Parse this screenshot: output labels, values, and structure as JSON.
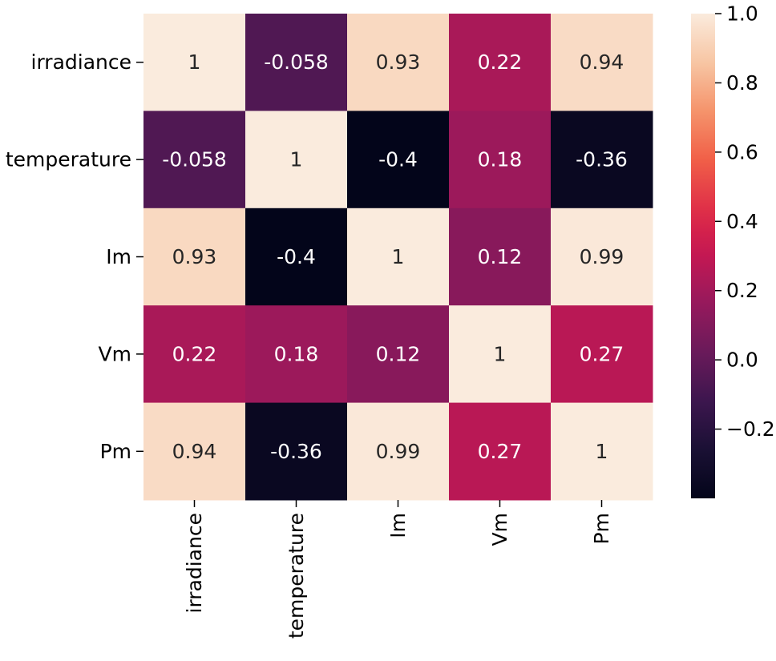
{
  "chart_data": {
    "type": "heatmap",
    "title": "",
    "xlabel": "",
    "ylabel": "",
    "row_labels": [
      "irradiance",
      "temperature",
      "Im",
      "Vm",
      "Pm"
    ],
    "col_labels": [
      "irradiance",
      "temperature",
      "Im",
      "Vm",
      "Pm"
    ],
    "values": [
      [
        1,
        -0.058,
        0.93,
        0.22,
        0.94
      ],
      [
        -0.058,
        1,
        -0.4,
        0.18,
        -0.36
      ],
      [
        0.93,
        -0.4,
        1,
        0.12,
        0.99
      ],
      [
        0.22,
        0.18,
        0.12,
        1,
        0.27
      ],
      [
        0.94,
        -0.36,
        0.99,
        0.27,
        1
      ]
    ],
    "annotations": [
      [
        "1",
        "-0.058",
        "0.93",
        "0.22",
        "0.94"
      ],
      [
        "-0.058",
        "1",
        "-0.4",
        "0.18",
        "-0.36"
      ],
      [
        "0.93",
        "-0.4",
        "1",
        "0.12",
        "0.99"
      ],
      [
        "0.22",
        "0.18",
        "0.12",
        "1",
        "0.27"
      ],
      [
        "0.94",
        "-0.36",
        "0.99",
        "0.27",
        "1"
      ]
    ],
    "colormap": "rocket",
    "vmin": -0.4,
    "vmax": 1.0,
    "colorbar": {
      "ticks": [
        1.0,
        0.8,
        0.6,
        0.4,
        0.2,
        0.0,
        -0.2
      ],
      "tick_labels": [
        "1.0",
        "0.8",
        "0.6",
        "0.4",
        "0.2",
        "0.0",
        "−0.2"
      ],
      "placement": "right"
    },
    "grid": false
  }
}
